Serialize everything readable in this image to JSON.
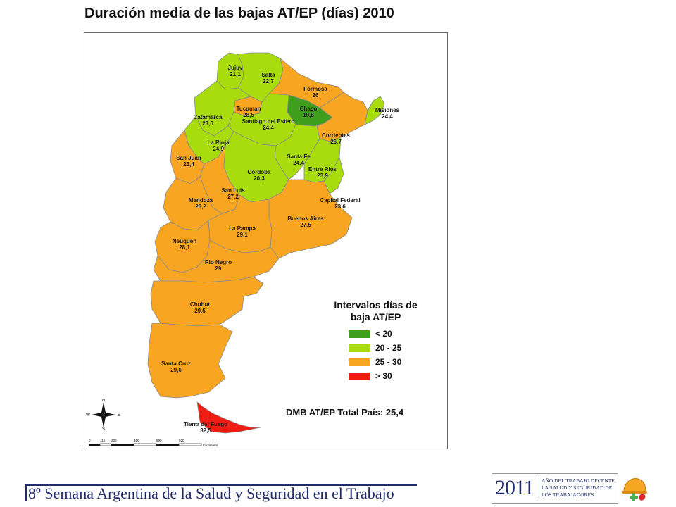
{
  "title": "Duración media de las bajas AT/EP (días) 2010",
  "colors": {
    "lt20": "#3f9e1b",
    "20_25": "#a8dc0c",
    "25_30": "#f8a622",
    "gt30": "#ee1c12",
    "border": "#8a8a8a"
  },
  "provinces": [
    {
      "name": "Jujuy",
      "value": "21,1",
      "class": "20_25"
    },
    {
      "name": "Salta",
      "value": "22,7",
      "class": "20_25"
    },
    {
      "name": "Formosa",
      "value": "26",
      "class": "25_30"
    },
    {
      "name": "Chaco",
      "value": "19,8",
      "class": "lt20"
    },
    {
      "name": "Misiones",
      "value": "24,4",
      "class": "20_25"
    },
    {
      "name": "Tucuman",
      "value": "28,5",
      "class": "25_30"
    },
    {
      "name": "Catamarca",
      "value": "23,6",
      "class": "20_25"
    },
    {
      "name": "Santiago del Estero",
      "value": "24,4",
      "class": "20_25"
    },
    {
      "name": "Corrientes",
      "value": "26,7",
      "class": "25_30"
    },
    {
      "name": "La Rioja",
      "value": "24,9",
      "class": "20_25"
    },
    {
      "name": "San Juan",
      "value": "26,4",
      "class": "25_30"
    },
    {
      "name": "Santa Fe",
      "value": "24,4",
      "class": "20_25"
    },
    {
      "name": "Entre Rios",
      "value": "23,9",
      "class": "20_25"
    },
    {
      "name": "Cordoba",
      "value": "20,3",
      "class": "20_25"
    },
    {
      "name": "San Luis",
      "value": "27,2",
      "class": "25_30"
    },
    {
      "name": "Mendoza",
      "value": "26,2",
      "class": "25_30"
    },
    {
      "name": "Capital Federal",
      "value": "23,6",
      "class": "20_25"
    },
    {
      "name": "Buenos Aires",
      "value": "27,5",
      "class": "25_30"
    },
    {
      "name": "La Pampa",
      "value": "29,1",
      "class": "25_30"
    },
    {
      "name": "Neuquen",
      "value": "28,1",
      "class": "25_30"
    },
    {
      "name": "Rio Negro",
      "value": "29",
      "class": "25_30"
    },
    {
      "name": "Chubut",
      "value": "29,5",
      "class": "25_30"
    },
    {
      "name": "Santa Cruz",
      "value": "29,6",
      "class": "25_30"
    },
    {
      "name": "Tierra del Fuego",
      "value": "32,5",
      "class": "gt30"
    }
  ],
  "legend": {
    "title": "Intervalos días de baja AT/EP",
    "items": [
      {
        "label": "< 20",
        "class": "lt20"
      },
      {
        "label": "20 - 25",
        "class": "20_25"
      },
      {
        "label": "25 - 30",
        "class": "25_30"
      },
      {
        "label": "> 30",
        "class": "gt30"
      }
    ]
  },
  "total": "DMB AT/EP Total País: 25,4",
  "compass": {
    "n": "N",
    "s": "S",
    "e": "E",
    "w": "W"
  },
  "scale": {
    "ticks": [
      "0",
      "115",
      "230",
      "460",
      "690",
      "920"
    ],
    "unit": "Kilometers"
  },
  "footer": "8º Semana Argentina de la Salud y Seguridad en el Trabajo",
  "logo": {
    "year": "2011",
    "text": "AÑO DEL TRABAJO DECENTE, LA SALUD Y SEGURIDAD DE LOS TRABAJADORES"
  }
}
